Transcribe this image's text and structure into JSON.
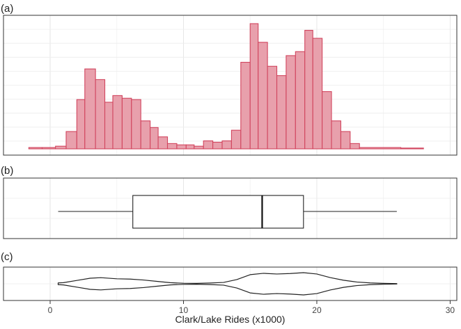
{
  "chart_data": [
    {
      "panel_label": "(a)",
      "type": "histogram",
      "x_range": [
        -3.5,
        30.5
      ],
      "y_range": [
        0,
        94
      ],
      "bins": [
        {
          "x0": -1.6,
          "x1": -0.6,
          "count": 1
        },
        {
          "x0": -0.6,
          "x1": 0.4,
          "count": 1
        },
        {
          "x0": 0.4,
          "x1": 1.2,
          "count": 2
        },
        {
          "x0": 1.2,
          "x1": 2.0,
          "count": 13
        },
        {
          "x0": 2.0,
          "x1": 2.6,
          "count": 37
        },
        {
          "x0": 2.6,
          "x1": 3.4,
          "count": 60
        },
        {
          "x0": 3.4,
          "x1": 4.1,
          "count": 52
        },
        {
          "x0": 4.1,
          "x1": 4.7,
          "count": 35
        },
        {
          "x0": 4.7,
          "x1": 5.4,
          "count": 40
        },
        {
          "x0": 5.4,
          "x1": 6.1,
          "count": 38
        },
        {
          "x0": 6.1,
          "x1": 6.8,
          "count": 37
        },
        {
          "x0": 6.8,
          "x1": 7.5,
          "count": 21
        },
        {
          "x0": 7.5,
          "x1": 8.1,
          "count": 16
        },
        {
          "x0": 8.1,
          "x1": 8.8,
          "count": 9
        },
        {
          "x0": 8.8,
          "x1": 9.5,
          "count": 4
        },
        {
          "x0": 9.5,
          "x1": 10.2,
          "count": 3
        },
        {
          "x0": 10.2,
          "x1": 10.8,
          "count": 3
        },
        {
          "x0": 10.8,
          "x1": 11.5,
          "count": 2
        },
        {
          "x0": 11.5,
          "x1": 12.2,
          "count": 6
        },
        {
          "x0": 12.2,
          "x1": 12.9,
          "count": 5
        },
        {
          "x0": 12.9,
          "x1": 13.6,
          "count": 6
        },
        {
          "x0": 13.6,
          "x1": 14.3,
          "count": 14
        },
        {
          "x0": 14.3,
          "x1": 15.0,
          "count": 65
        },
        {
          "x0": 15.0,
          "x1": 15.6,
          "count": 94
        },
        {
          "x0": 15.6,
          "x1": 16.3,
          "count": 80
        },
        {
          "x0": 16.3,
          "x1": 17.0,
          "count": 62
        },
        {
          "x0": 17.0,
          "x1": 17.7,
          "count": 55
        },
        {
          "x0": 17.7,
          "x1": 18.4,
          "count": 70
        },
        {
          "x0": 18.4,
          "x1": 19.1,
          "count": 73
        },
        {
          "x0": 19.1,
          "x1": 19.7,
          "count": 89
        },
        {
          "x0": 19.7,
          "x1": 20.4,
          "count": 83
        },
        {
          "x0": 20.4,
          "x1": 21.1,
          "count": 43
        },
        {
          "x0": 21.1,
          "x1": 21.8,
          "count": 21
        },
        {
          "x0": 21.8,
          "x1": 22.5,
          "count": 13
        },
        {
          "x0": 22.5,
          "x1": 23.2,
          "count": 4
        },
        {
          "x0": 23.2,
          "x1": 26.3,
          "count": 1
        },
        {
          "x0": 26.3,
          "x1": 28.0,
          "count": 0.6
        }
      ],
      "fill_color": "#E8A0AC",
      "stroke_color": "#D1455E"
    },
    {
      "panel_label": "(b)",
      "type": "box",
      "x_range": [
        -3.5,
        30.5
      ],
      "whisker_low": 0.6,
      "q1": 6.2,
      "median": 15.9,
      "q3": 19.0,
      "whisker_high": 26.0
    },
    {
      "panel_label": "(c)",
      "type": "violin",
      "x_range": [
        -3.5,
        30.5
      ],
      "density": [
        {
          "x": 0.6,
          "h": 0.08
        },
        {
          "x": 1.0,
          "h": 0.1
        },
        {
          "x": 2.0,
          "h": 0.3
        },
        {
          "x": 3.0,
          "h": 0.5
        },
        {
          "x": 3.8,
          "h": 0.55
        },
        {
          "x": 5.0,
          "h": 0.45
        },
        {
          "x": 6.0,
          "h": 0.42
        },
        {
          "x": 7.0,
          "h": 0.34
        },
        {
          "x": 8.0,
          "h": 0.22
        },
        {
          "x": 9.0,
          "h": 0.1
        },
        {
          "x": 10.0,
          "h": 0.05
        },
        {
          "x": 11.0,
          "h": 0.04
        },
        {
          "x": 12.0,
          "h": 0.07
        },
        {
          "x": 13.0,
          "h": 0.12
        },
        {
          "x": 14.0,
          "h": 0.38
        },
        {
          "x": 15.0,
          "h": 0.82
        },
        {
          "x": 16.0,
          "h": 0.94
        },
        {
          "x": 17.0,
          "h": 0.88
        },
        {
          "x": 18.0,
          "h": 0.92
        },
        {
          "x": 19.0,
          "h": 1.0
        },
        {
          "x": 20.0,
          "h": 0.88
        },
        {
          "x": 21.0,
          "h": 0.56
        },
        {
          "x": 22.0,
          "h": 0.32
        },
        {
          "x": 23.0,
          "h": 0.16
        },
        {
          "x": 24.0,
          "h": 0.08
        },
        {
          "x": 25.0,
          "h": 0.04
        },
        {
          "x": 26.0,
          "h": 0.02
        }
      ]
    }
  ],
  "x_axis": {
    "label": "Clark/Lake Rides (x1000)",
    "ticks": [
      0,
      10,
      20,
      30
    ],
    "grid": true
  }
}
